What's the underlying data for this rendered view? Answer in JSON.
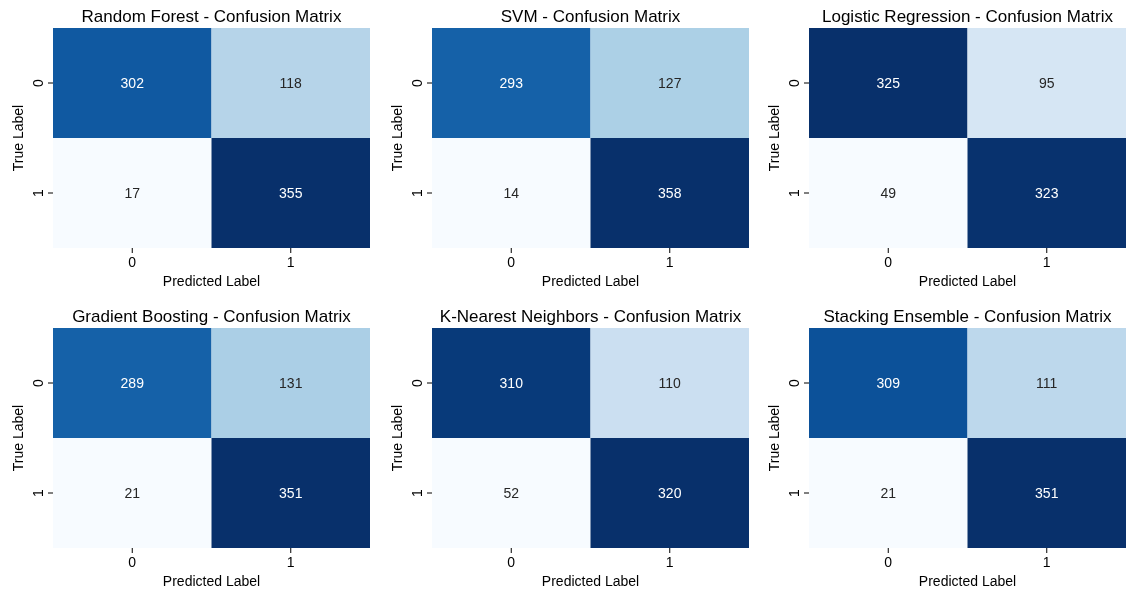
{
  "chart_data": [
    {
      "type": "heatmap",
      "title": "Random Forest - Confusion Matrix",
      "xlabel": "Predicted Label",
      "ylabel": "True Label",
      "categories": [
        "0",
        "1"
      ],
      "y_categories": [
        "0",
        "1"
      ],
      "cells": [
        [
          302,
          118
        ],
        [
          17,
          355
        ]
      ],
      "data_labels": true
    },
    {
      "type": "heatmap",
      "title": "SVM - Confusion Matrix",
      "xlabel": "Predicted Label",
      "ylabel": "True Label",
      "categories": [
        "0",
        "1"
      ],
      "y_categories": [
        "0",
        "1"
      ],
      "cells": [
        [
          293,
          127
        ],
        [
          14,
          358
        ]
      ],
      "data_labels": true
    },
    {
      "type": "heatmap",
      "title": "Logistic Regression - Confusion Matrix",
      "xlabel": "Predicted Label",
      "ylabel": "True Label",
      "categories": [
        "0",
        "1"
      ],
      "y_categories": [
        "0",
        "1"
      ],
      "cells": [
        [
          325,
          95
        ],
        [
          49,
          323
        ]
      ],
      "data_labels": true
    },
    {
      "type": "heatmap",
      "title": "Gradient Boosting - Confusion Matrix",
      "xlabel": "Predicted Label",
      "ylabel": "True Label",
      "categories": [
        "0",
        "1"
      ],
      "y_categories": [
        "0",
        "1"
      ],
      "cells": [
        [
          289,
          131
        ],
        [
          21,
          351
        ]
      ],
      "data_labels": true
    },
    {
      "type": "heatmap",
      "title": "K-Nearest Neighbors - Confusion Matrix",
      "xlabel": "Predicted Label",
      "ylabel": "True Label",
      "categories": [
        "0",
        "1"
      ],
      "y_categories": [
        "0",
        "1"
      ],
      "cells": [
        [
          310,
          110
        ],
        [
          52,
          320
        ]
      ],
      "data_labels": true
    },
    {
      "type": "heatmap",
      "title": "Stacking Ensemble - Confusion Matrix",
      "xlabel": "Predicted Label",
      "ylabel": "True Label",
      "categories": [
        "0",
        "1"
      ],
      "y_categories": [
        "0",
        "1"
      ],
      "cells": [
        [
          309,
          111
        ],
        [
          21,
          351
        ]
      ],
      "data_labels": true
    }
  ]
}
